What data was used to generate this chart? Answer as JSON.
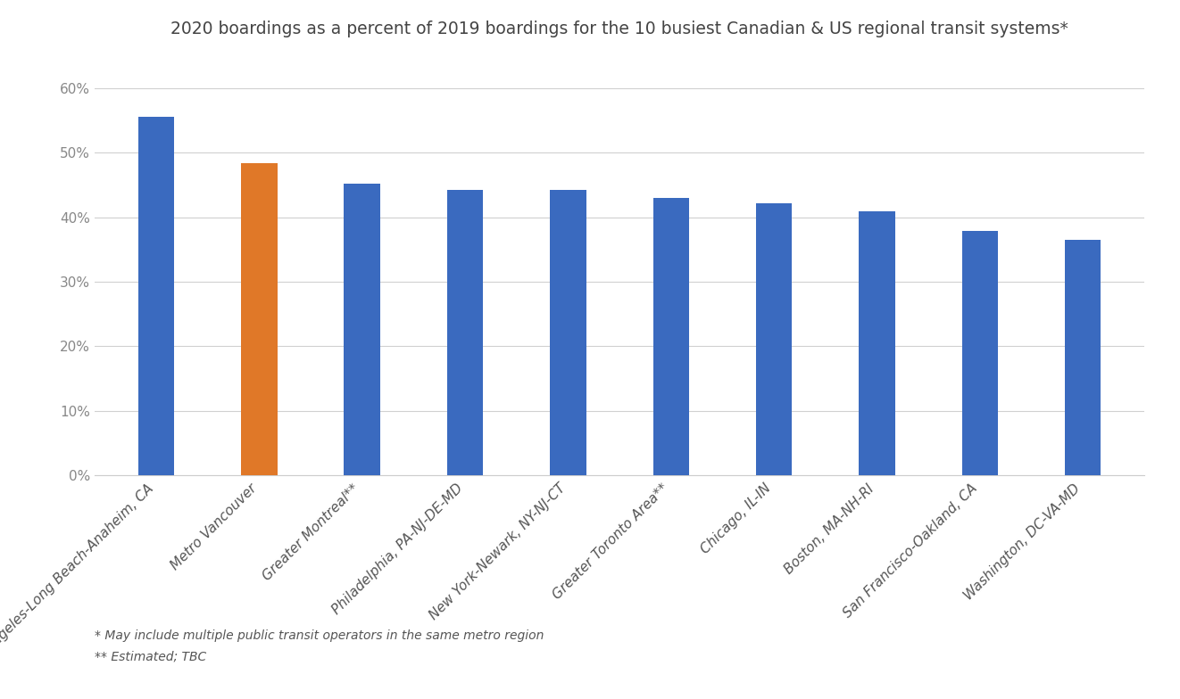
{
  "title": "2020 boardings as a percent of 2019 boardings for the 10 busiest Canadian & US regional transit systems*",
  "categories": [
    "Los Angeles-Long Beach-Anaheim, CA",
    "Metro Vancouver",
    "Greater Montreal**",
    "Philadelphia, PA-NJ-DE-MD",
    "New York-Newark, NY-NJ-CT",
    "Greater Toronto Area**",
    "Chicago, IL-IN",
    "Boston, MA-NH-RI",
    "San Francisco-Oakland, CA",
    "Washington, DC-VA-MD"
  ],
  "values": [
    0.555,
    0.484,
    0.452,
    0.443,
    0.443,
    0.43,
    0.421,
    0.409,
    0.379,
    0.365
  ],
  "bar_colors": [
    "#3a6abf",
    "#e07828",
    "#3a6abf",
    "#3a6abf",
    "#3a6abf",
    "#3a6abf",
    "#3a6abf",
    "#3a6abf",
    "#3a6abf",
    "#3a6abf"
  ],
  "ylim": [
    0,
    0.65
  ],
  "yticks": [
    0.0,
    0.1,
    0.2,
    0.3,
    0.4,
    0.5,
    0.6
  ],
  "ytick_labels": [
    "0%",
    "10%",
    "20%",
    "30%",
    "40%",
    "50%",
    "60%"
  ],
  "footnote1": "* May include multiple public transit operators in the same metro region",
  "footnote2": "** Estimated; TBC",
  "background_color": "#ffffff",
  "grid_color": "#d0d0d0",
  "title_fontsize": 13.5,
  "tick_fontsize": 11,
  "footnote_fontsize": 10,
  "bar_width": 0.35
}
